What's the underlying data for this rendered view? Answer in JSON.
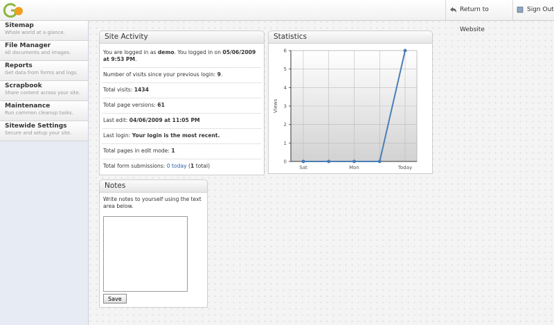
{
  "header": {
    "links": [
      "Return to Website",
      "Sign Out"
    ]
  },
  "sidebar": {
    "items": [
      {
        "title": "Sitemap",
        "description": "Whole world at a glance."
      },
      {
        "title": "File Manager",
        "description": "All documents and images."
      },
      {
        "title": "Reports",
        "description": "Get data from forms and logs."
      },
      {
        "title": "Scrapbook",
        "description": "Share content across your site."
      },
      {
        "title": "Maintenance",
        "description": "Run common cleanup tasks."
      },
      {
        "title": "Sitewide Settings",
        "description": "Secure and setup your site."
      }
    ]
  },
  "site_activity": {
    "title": "Site Activity",
    "rows": [
      [
        "You are logged in as ",
        "demo",
        ". You logged in on ",
        "05/06/2009 at 9:53 PM",
        "."
      ],
      [
        "Number of visits since your previous login: ",
        "9",
        "."
      ],
      [
        "Total visits: ",
        "1434"
      ],
      [
        "Total page versions: ",
        "61"
      ],
      [
        "Last edit: ",
        "04/06/2009 at 11:05 PM"
      ],
      [
        "Last login: ",
        "Your login is the most recent."
      ],
      [
        "Total pages in edit mode: ",
        "1"
      ],
      [
        "Total form submissions: ",
        "0 today",
        " (",
        "1",
        " total)"
      ]
    ]
  },
  "notes": {
    "title": "Notes",
    "text": "Write notes to yourself using the text area below.",
    "button": "Save"
  },
  "chart_data": {
    "type": "line",
    "title": "Statistics",
    "y_label": "Views",
    "categories": [
      "Sat",
      null,
      "Mon",
      null,
      "Today"
    ],
    "values": [
      0,
      0,
      0,
      0,
      6
    ],
    "color": "#4a7db3",
    "ylim": [
      0,
      6
    ],
    "yticks": [
      0,
      1,
      2,
      3,
      4,
      5,
      6
    ],
    "grid": true
  }
}
